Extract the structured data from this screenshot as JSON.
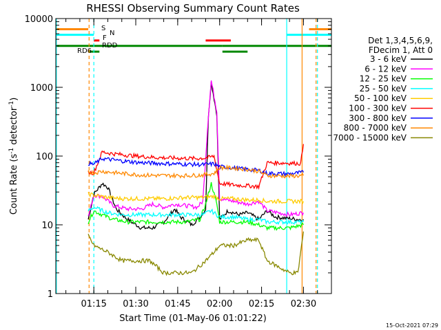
{
  "chart_data": {
    "type": "line",
    "title": "RHESSI Observing Summary Count Rates",
    "xlabel": "Start Time (01-May-06 01:01:22)",
    "ylabel": "Count Rate (s⁻¹ detector⁻¹)",
    "ylabel_parts": {
      "main": "Count Rate (s",
      "sup1": "-1",
      "mid": " detector",
      "sup2": "-1",
      "end": ")"
    },
    "yscale": "log",
    "ylim": [
      1,
      10000
    ],
    "xlim_minutes": [
      61.4,
      160
    ],
    "x_ticks": [
      {
        "label": "01:15",
        "m": 75
      },
      {
        "label": "01:30",
        "m": 90
      },
      {
        "label": "01:45",
        "m": 105
      },
      {
        "label": "02:00",
        "m": 120
      },
      {
        "label": "02:15",
        "m": 135
      },
      {
        "label": "02:30",
        "m": 150
      }
    ],
    "y_ticks": [
      {
        "label": "1",
        "v": 1
      },
      {
        "label": "10",
        "v": 10
      },
      {
        "label": "100",
        "v": 100
      },
      {
        "label": "1000",
        "v": 1000
      },
      {
        "label": "10000",
        "v": 10000
      }
    ],
    "legend": {
      "placement": "right",
      "header1": "Det 1,3,4,5,6,9,",
      "header2": "FDecim 1, Att 0"
    },
    "series": [
      {
        "name": "3 - 6 keV",
        "color": "#000000",
        "points": [
          [
            73,
            12
          ],
          [
            75,
            28
          ],
          [
            78,
            40
          ],
          [
            80,
            35
          ],
          [
            83,
            17
          ],
          [
            87,
            12
          ],
          [
            92,
            9
          ],
          [
            96,
            9
          ],
          [
            100,
            11
          ],
          [
            104,
            17
          ],
          [
            106,
            13
          ],
          [
            110,
            10
          ],
          [
            113,
            13
          ],
          [
            115,
            17
          ],
          [
            116,
            400
          ],
          [
            117,
            1200
          ],
          [
            119,
            400
          ],
          [
            120,
            12
          ],
          [
            123,
            16
          ],
          [
            127,
            14
          ],
          [
            130,
            15
          ],
          [
            134,
            12
          ],
          [
            137,
            16
          ],
          [
            140,
            13
          ],
          [
            148,
            12
          ],
          [
            150,
            12
          ]
        ]
      },
      {
        "name": "6 - 12 keV",
        "color": "#ff00ff",
        "points": [
          [
            73,
            13
          ],
          [
            75,
            27
          ],
          [
            78,
            26
          ],
          [
            82,
            19
          ],
          [
            87,
            17
          ],
          [
            92,
            17
          ],
          [
            96,
            20
          ],
          [
            100,
            18
          ],
          [
            104,
            20
          ],
          [
            108,
            19
          ],
          [
            112,
            18
          ],
          [
            114,
            22
          ],
          [
            116,
            400
          ],
          [
            117,
            1250
          ],
          [
            119,
            450
          ],
          [
            120,
            24
          ],
          [
            125,
            22
          ],
          [
            130,
            20
          ],
          [
            134,
            22
          ],
          [
            137,
            16
          ],
          [
            145,
            14
          ],
          [
            150,
            15
          ]
        ]
      },
      {
        "name": "12 - 25 keV",
        "color": "#00ff00",
        "points": [
          [
            73,
            11
          ],
          [
            75,
            16
          ],
          [
            78,
            14
          ],
          [
            82,
            12
          ],
          [
            87,
            11
          ],
          [
            92,
            11
          ],
          [
            100,
            11
          ],
          [
            108,
            11
          ],
          [
            113,
            12
          ],
          [
            115,
            20
          ],
          [
            117,
            40
          ],
          [
            119,
            20
          ],
          [
            120,
            11
          ],
          [
            125,
            11
          ],
          [
            130,
            11
          ],
          [
            134,
            10
          ],
          [
            137,
            9
          ],
          [
            145,
            9
          ],
          [
            150,
            10
          ]
        ]
      },
      {
        "name": "25 - 50 keV",
        "color": "#00ffff",
        "points": [
          [
            73,
            16
          ],
          [
            75,
            18
          ],
          [
            80,
            15
          ],
          [
            85,
            14
          ],
          [
            92,
            14
          ],
          [
            100,
            14
          ],
          [
            108,
            14
          ],
          [
            114,
            14
          ],
          [
            117,
            16
          ],
          [
            120,
            13
          ],
          [
            125,
            13
          ],
          [
            130,
            12
          ],
          [
            134,
            12
          ],
          [
            137,
            11
          ],
          [
            145,
            11
          ],
          [
            150,
            11
          ]
        ]
      },
      {
        "name": "50 - 100 keV",
        "color": "#ffcc00",
        "points": [
          [
            73,
            28
          ],
          [
            75,
            27
          ],
          [
            80,
            25
          ],
          [
            85,
            24
          ],
          [
            92,
            24
          ],
          [
            100,
            24
          ],
          [
            108,
            25
          ],
          [
            114,
            25
          ],
          [
            118,
            26
          ],
          [
            120,
            24
          ],
          [
            125,
            24
          ],
          [
            130,
            23
          ],
          [
            134,
            23
          ],
          [
            137,
            22
          ],
          [
            145,
            22
          ],
          [
            150,
            22
          ]
        ]
      },
      {
        "name": "100 - 300 keV",
        "color": "#ff0000",
        "points": [
          [
            73,
            58
          ],
          [
            75,
            57
          ],
          [
            78,
            115
          ],
          [
            82,
            108
          ],
          [
            90,
            100
          ],
          [
            98,
            95
          ],
          [
            106,
            93
          ],
          [
            112,
            92
          ],
          [
            116,
            95
          ],
          [
            118,
            100
          ],
          [
            120,
            40
          ],
          [
            125,
            38
          ],
          [
            130,
            37
          ],
          [
            134,
            36
          ],
          [
            137,
            80
          ],
          [
            145,
            79
          ],
          [
            149,
            78
          ],
          [
            150,
            150
          ]
        ]
      },
      {
        "name": "300 - 800 keV",
        "color": "#0000ff",
        "points": [
          [
            73,
            78
          ],
          [
            75,
            76
          ],
          [
            78,
            92
          ],
          [
            85,
            85
          ],
          [
            92,
            80
          ],
          [
            100,
            78
          ],
          [
            108,
            76
          ],
          [
            114,
            75
          ],
          [
            118,
            77
          ],
          [
            120,
            70
          ],
          [
            125,
            67
          ],
          [
            130,
            64
          ],
          [
            134,
            62
          ],
          [
            137,
            56
          ],
          [
            145,
            55
          ],
          [
            150,
            58
          ]
        ]
      },
      {
        "name": "800 - 7000 keV",
        "color": "#ff8800",
        "points": [
          [
            73,
            60
          ],
          [
            75,
            57
          ],
          [
            78,
            60
          ],
          [
            85,
            56
          ],
          [
            92,
            53
          ],
          [
            100,
            52
          ],
          [
            108,
            52
          ],
          [
            114,
            53
          ],
          [
            118,
            56
          ],
          [
            120,
            68
          ],
          [
            125,
            67
          ],
          [
            130,
            64
          ],
          [
            134,
            60
          ],
          [
            137,
            52
          ],
          [
            145,
            51
          ],
          [
            150,
            52
          ]
        ]
      },
      {
        "name": "7000 - 15000 keV",
        "color": "#888800",
        "points": [
          [
            73,
            7
          ],
          [
            75,
            5
          ],
          [
            80,
            4
          ],
          [
            85,
            3
          ],
          [
            90,
            3
          ],
          [
            95,
            3
          ],
          [
            100,
            2
          ],
          [
            105,
            2
          ],
          [
            110,
            2
          ],
          [
            115,
            3
          ],
          [
            118,
            4
          ],
          [
            120,
            5
          ],
          [
            125,
            5
          ],
          [
            130,
            6
          ],
          [
            134,
            6
          ],
          [
            137,
            3
          ],
          [
            145,
            2
          ],
          [
            148,
            2
          ],
          [
            150,
            8
          ]
        ]
      }
    ],
    "flag_bars": [
      {
        "label": "S",
        "label_color": "#ff8800",
        "color": "#ff8800",
        "v": 7000,
        "ranges": [
          [
            61.4,
            73
          ],
          [
            152,
            160
          ]
        ]
      },
      {
        "label": "N",
        "label_color": "#00ffff",
        "color": "#00ffff",
        "v": 5800,
        "ranges": [
          [
            61.4,
            75
          ],
          [
            144,
            160
          ]
        ]
      },
      {
        "label": "F",
        "label_color": "#ff0000",
        "color": "#ff0000",
        "v": 4800,
        "ranges": [
          [
            75,
            77
          ],
          [
            115,
            124
          ]
        ]
      },
      {
        "label": "RDD",
        "label_color": "#008800",
        "color": "#008800",
        "v": 4000,
        "ranges": [
          [
            61.4,
            121
          ],
          [
            121,
            160
          ]
        ]
      },
      {
        "label": "RD6",
        "label_color": "#008800",
        "color": "#008800",
        "v": 3300,
        "ranges": [
          [
            73,
            77
          ],
          [
            121,
            130
          ]
        ]
      }
    ],
    "vertical_markers": [
      {
        "m": 61.6,
        "color": "#00ffff",
        "style": "solid"
      },
      {
        "m": 73.3,
        "color": "#ff8800",
        "style": "dashed"
      },
      {
        "m": 75,
        "color": "#00ffff",
        "style": "dashed"
      },
      {
        "m": 144,
        "color": "#00ffff",
        "style": "solid"
      },
      {
        "m": 149.5,
        "color": "#ff8800",
        "style": "solid"
      },
      {
        "m": 154.5,
        "color": "#ff8800",
        "style": "dashed"
      },
      {
        "m": 155,
        "color": "#00ffff",
        "style": "dashed"
      }
    ],
    "timestamp": "15-Oct-2021 07:29"
  }
}
